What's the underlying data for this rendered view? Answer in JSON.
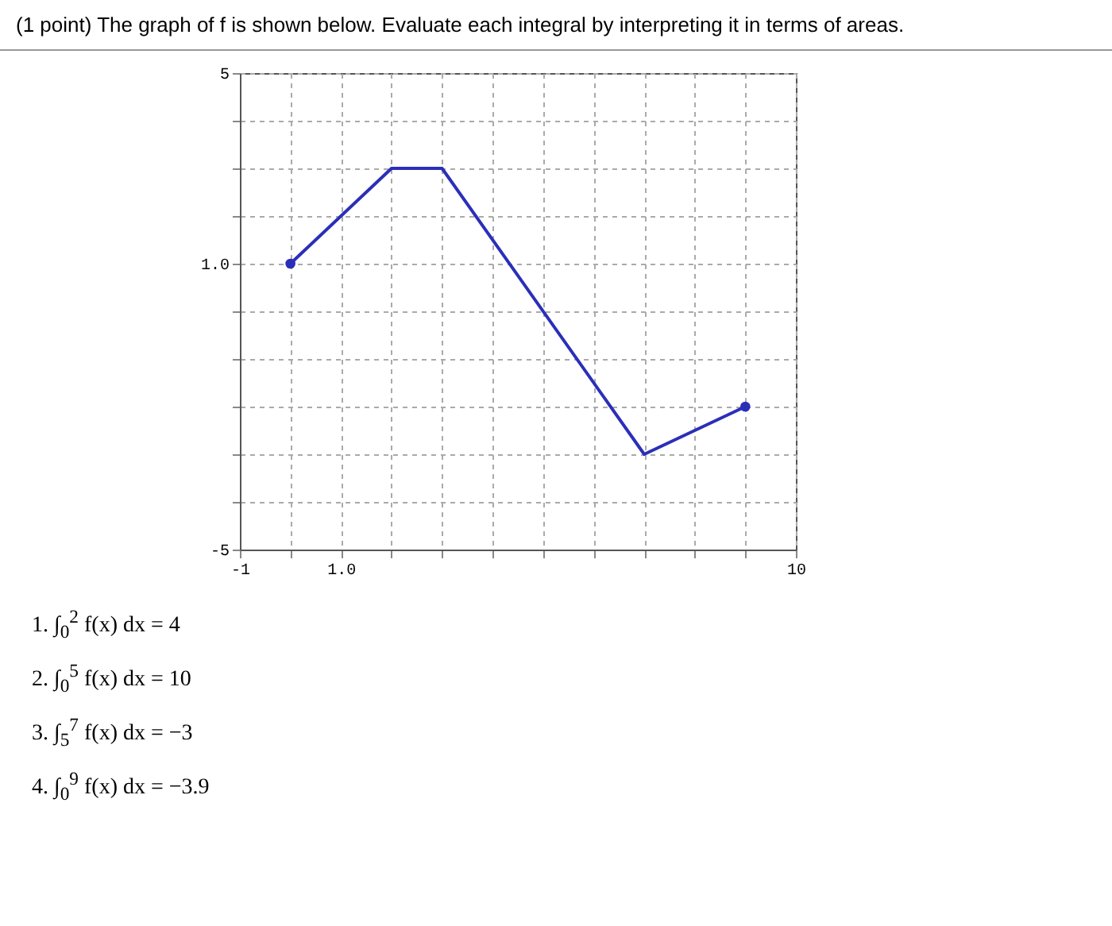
{
  "chart_data": {
    "type": "line",
    "title": "(1 point) The graph of f is shown below. Evaluate each integral by interpreting it in terms of areas.",
    "xlim": [
      -1,
      10
    ],
    "xticks": [
      -1,
      {
        "value": 0,
        "label": null
      },
      {
        "value": 1,
        "label": "1.0"
      },
      {
        "value": 2,
        "label": null
      },
      {
        "value": 3,
        "label": null
      },
      {
        "value": 4,
        "label": null
      },
      {
        "value": 5,
        "label": null
      },
      {
        "value": 6,
        "label": null
      },
      {
        "value": 7,
        "label": null
      },
      {
        "value": 8,
        "label": null
      },
      {
        "value": 9,
        "label": null
      },
      10
    ],
    "ylim": [
      -5,
      5
    ],
    "yticks": [
      -5,
      {
        "value": -4,
        "label": null
      },
      {
        "value": -3,
        "label": null
      },
      {
        "value": -2,
        "label": null
      },
      {
        "value": -1,
        "label": null
      },
      {
        "value": 0,
        "label": null
      },
      {
        "value": 1,
        "label": "1.0"
      },
      {
        "value": 2,
        "label": null
      },
      {
        "value": 3,
        "label": null
      },
      {
        "value": 4,
        "label": null
      },
      5
    ],
    "grid": true,
    "series": [
      {
        "type": "line",
        "color": "#2b2fb8",
        "x": [
          0,
          2,
          3,
          7,
          9
        ],
        "values": [
          1,
          3,
          3,
          -3,
          -2
        ]
      },
      {
        "type": "scatter",
        "color": "#2b2fb8",
        "x": [
          0,
          9
        ],
        "values": [
          1,
          -2
        ]
      }
    ],
    "annotations": [
      "1. ∫$_{0}$$^{2}$ f(x) dx = 4",
      "2. ∫$_{0}$$^{5}$ f(x) dx = 10",
      "3. ∫$_{5}$$^{7}$ f(x) dx = −3",
      "4. ∫$_{0}$$^{9}$ f(x) dx = −3.9"
    ]
  }
}
